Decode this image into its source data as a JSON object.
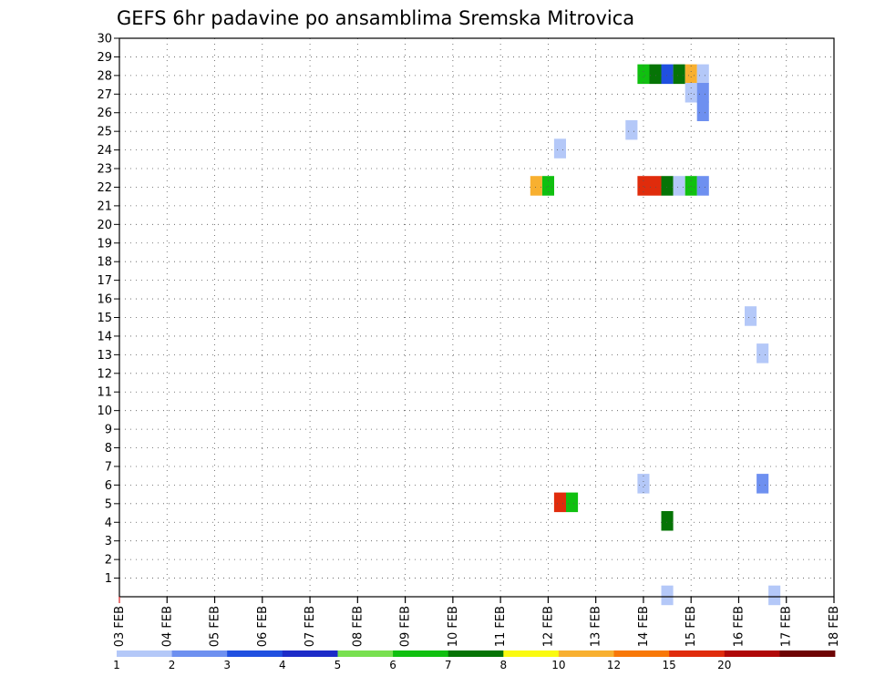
{
  "chart_data": {
    "type": "heatmap",
    "title": "GEFS 6hr padavine po ansamblima Sremska Mitrovica",
    "x_tick_labels": [
      "03 FEB",
      "04 FEB",
      "05 FEB",
      "06 FEB",
      "07 FEB",
      "08 FEB",
      "09 FEB",
      "10 FEB",
      "11 FEB",
      "12 FEB",
      "13 FEB",
      "14 FEB",
      "15 FEB",
      "16 FEB",
      "17 FEB",
      "18 FEB"
    ],
    "xlim": [
      0,
      15
    ],
    "y_tick_labels": [
      "1",
      "2",
      "3",
      "4",
      "5",
      "6",
      "7",
      "8",
      "9",
      "10",
      "11",
      "12",
      "13",
      "14",
      "15",
      "16",
      "17",
      "18",
      "19",
      "20",
      "21",
      "22",
      "23",
      "24",
      "25",
      "26",
      "27",
      "28",
      "29",
      "30"
    ],
    "ylim": [
      0,
      30
    ],
    "grid": true,
    "legend_placement": "bottom",
    "color_scale": {
      "colors": [
        "#b4c8f8",
        "#6e90f0",
        "#2050e0",
        "#1c2cc8",
        "#78e050",
        "#10c010",
        "#067406",
        "#fafa10",
        "#f8b030",
        "#f87808",
        "#e02c0c",
        "#b00808",
        "#6e0404"
      ],
      "labels": [
        "1",
        "2",
        "3",
        "4",
        "5",
        "6",
        "7",
        "8",
        "10",
        "12",
        "15",
        "20",
        ""
      ]
    },
    "cells": [
      {
        "day": 11.0,
        "member": 28,
        "level": 5
      },
      {
        "day": 11.25,
        "member": 28,
        "level": 6
      },
      {
        "day": 11.5,
        "member": 28,
        "level": 2
      },
      {
        "day": 11.75,
        "member": 28,
        "level": 6
      },
      {
        "day": 12.0,
        "member": 28,
        "level": 8
      },
      {
        "day": 12.25,
        "member": 28,
        "level": 0
      },
      {
        "day": 12.0,
        "member": 27,
        "level": 0
      },
      {
        "day": 12.25,
        "member": 27,
        "level": 1
      },
      {
        "day": 12.25,
        "member": 26,
        "level": 1
      },
      {
        "day": 10.75,
        "member": 25,
        "level": 0
      },
      {
        "day": 9.25,
        "member": 24,
        "level": 0
      },
      {
        "day": 8.75,
        "member": 22,
        "level": 8
      },
      {
        "day": 9.0,
        "member": 22,
        "level": 5
      },
      {
        "day": 11.0,
        "member": 22,
        "level": 10
      },
      {
        "day": 11.25,
        "member": 22,
        "level": 10
      },
      {
        "day": 11.5,
        "member": 22,
        "level": 6
      },
      {
        "day": 11.75,
        "member": 22,
        "level": 0
      },
      {
        "day": 12.0,
        "member": 22,
        "level": 5
      },
      {
        "day": 12.25,
        "member": 22,
        "level": 1
      },
      {
        "day": 13.25,
        "member": 15,
        "level": 0
      },
      {
        "day": 13.5,
        "member": 13,
        "level": 0
      },
      {
        "day": 11.0,
        "member": 6,
        "level": 0
      },
      {
        "day": 13.5,
        "member": 6,
        "level": 1
      },
      {
        "day": 9.25,
        "member": 5,
        "level": 10
      },
      {
        "day": 9.5,
        "member": 5,
        "level": 5
      },
      {
        "day": 11.5,
        "member": 4,
        "level": 6
      },
      {
        "day": 11.5,
        "member": 0,
        "level": 0
      },
      {
        "day": 13.75,
        "member": 0,
        "level": 0
      }
    ]
  }
}
